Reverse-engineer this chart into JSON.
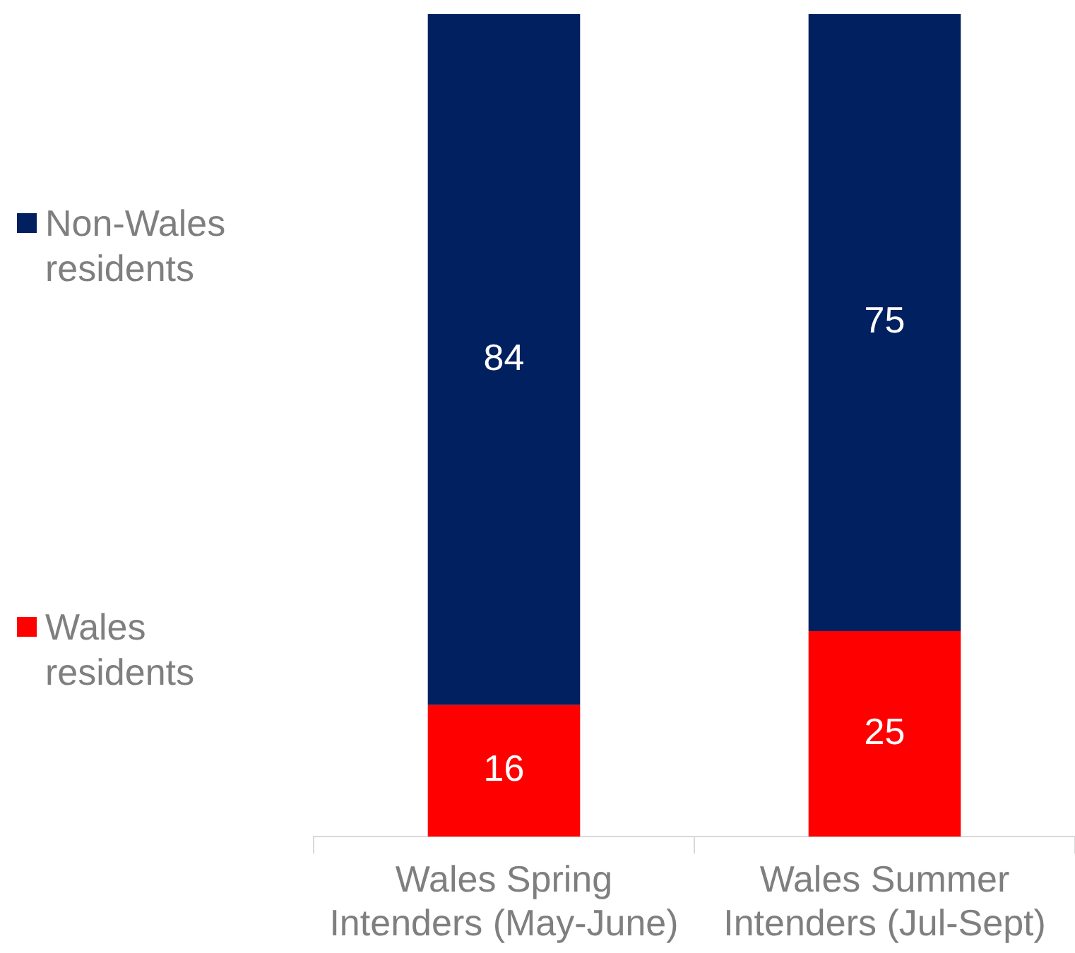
{
  "chart_data": {
    "type": "bar",
    "stacked": true,
    "categories": [
      "Wales Spring Intenders (May-June)",
      "Wales Summer Intenders (Jul-Sept)"
    ],
    "series": [
      {
        "name": "Wales residents",
        "color": "#ff0000",
        "values": [
          16,
          25
        ]
      },
      {
        "name": "Non-Wales residents",
        "color": "#002060",
        "values": [
          84,
          75
        ]
      }
    ],
    "ylim": [
      0,
      100
    ],
    "tick_labels": "x",
    "data_labels": true,
    "grid": false,
    "legend": "left"
  }
}
